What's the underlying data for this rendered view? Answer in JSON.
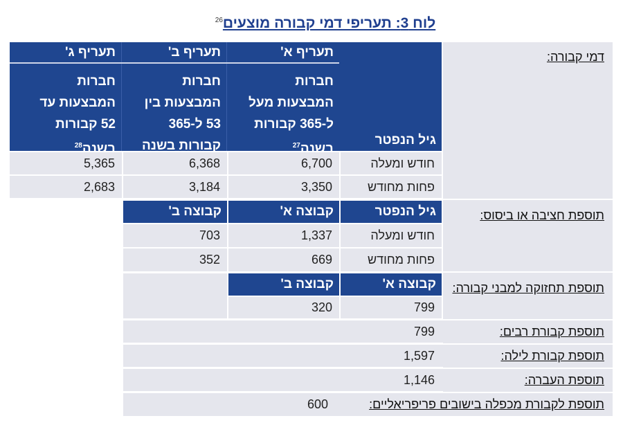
{
  "title": {
    "text": "לוח 3: תעריפי דמי קבורה מוצעים",
    "footnote": "26"
  },
  "section1": {
    "label": "דמי קבורה:",
    "tariff_headers": [
      "תעריף א'",
      "תעריף ב'",
      "תעריף ג'"
    ],
    "age_header": "גיל הנפטר",
    "tariff_descriptions": [
      {
        "lines": [
          "חברות",
          "המבצעות מעל",
          "ל-365 קבורות",
          "בשנה"
        ],
        "footnote": "27"
      },
      {
        "lines": [
          "חברות",
          "המבצעות בין",
          "53 ל-365",
          "קבורות בשנה"
        ],
        "footnote": ""
      },
      {
        "lines": [
          "חברות",
          "המבצעות עד",
          "52 קבורות",
          "בשנה"
        ],
        "footnote": "28"
      }
    ],
    "rows": [
      {
        "age": "חודש ומעלה",
        "values": [
          "6,700",
          "6,368",
          "5,365"
        ]
      },
      {
        "age": "פחות מחודש",
        "values": [
          "3,350",
          "3,184",
          "2,683"
        ]
      }
    ]
  },
  "section2": {
    "label": "תוספת חציבה או ביסוס:",
    "headers": [
      "גיל הנפטר",
      "קבוצה א'",
      "קבוצה ב'"
    ],
    "rows": [
      {
        "age": "חודש ומעלה",
        "values": [
          "1,337",
          "703"
        ]
      },
      {
        "age": "פחות מחודש",
        "values": [
          "669",
          "352"
        ]
      }
    ]
  },
  "section3": {
    "label": "תוספת תחזוקה למבני קבורה:",
    "headers": [
      "קבוצה א'",
      "קבוצה ב'"
    ],
    "values": [
      "799",
      "320"
    ]
  },
  "extras": [
    {
      "label": "תוספת קבורת רבים:",
      "value": "799"
    },
    {
      "label": "תוספת קבורת לילה:",
      "value": "1,597"
    },
    {
      "label": "תוספת העברה:",
      "value": "1,146"
    },
    {
      "label": "תוספת לקבורת מכפלה בישובים פריפריאליים:",
      "value": "600"
    }
  ],
  "colors": {
    "header_blue": "#1f4690",
    "row_gray": "#e5e6ed",
    "title_blue": "#1f3f8f"
  }
}
